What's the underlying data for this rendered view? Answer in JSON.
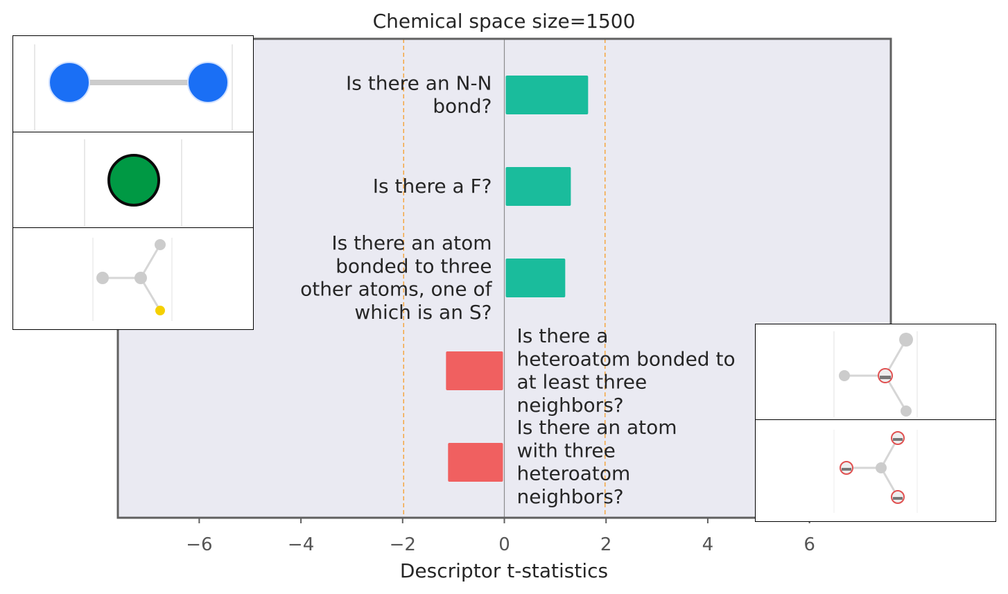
{
  "chart_data": {
    "type": "bar",
    "orientation": "horizontal",
    "title": "Chemical space size=1500",
    "xlabel": "Descriptor t-statistics",
    "ylabel": "",
    "xlim": [
      -7.6,
      7.6
    ],
    "xticks": [
      -6,
      -4,
      -2,
      0,
      2,
      4,
      6
    ],
    "xtick_labels": [
      "−6",
      "−4",
      "−2",
      "0",
      "2",
      "4",
      "6"
    ],
    "significance_lines": [
      -1.98,
      1.98
    ],
    "grid": false,
    "categories": [
      "Is there an N-N bond?",
      "Is there a F?",
      "Is there an atom bonded to three other atoms, one of which is an S?",
      "Is there a heteroatom bonded to at least three neighbors?",
      "Is there an atom with three heteroatom neighbors?"
    ],
    "category_label_lines": [
      [
        "Is there an N-N",
        "bond?"
      ],
      [
        "Is there a F?"
      ],
      [
        "Is there an atom",
        "bonded to three",
        "other atoms, one of",
        "which is an S?"
      ],
      [
        "Is there a",
        "heteroatom bonded to",
        "at least three",
        "neighbors?"
      ],
      [
        "Is there an atom",
        "with three",
        "heteroatom",
        "neighbors?"
      ]
    ],
    "values": [
      1.62,
      1.28,
      1.17,
      -1.12,
      -1.08
    ],
    "colors": {
      "positive": "#1abc9c",
      "negative": "#f06060",
      "plot_background": "#eaeaf2",
      "significance_line": "#f5a742",
      "zero_line": "#8c8c8c",
      "frame": "#606060"
    }
  },
  "molecule_insets": [
    {
      "for_category": "Is there an N-N bond?",
      "icon": "n-n-bond-molecule-icon"
    },
    {
      "for_category": "Is there a F?",
      "icon": "fluorine-atom-molecule-icon"
    },
    {
      "for_category": "Is there an atom bonded to three other atoms, one of which is an S?",
      "icon": "sulfur-branch-molecule-icon"
    },
    {
      "for_category": "Is there a heteroatom bonded to at least three neighbors?",
      "icon": "heteroatom-center-molecule-icon"
    },
    {
      "for_category": "Is there an atom with three heteroatom neighbors?",
      "icon": "three-heteroatom-neighbors-molecule-icon"
    }
  ]
}
